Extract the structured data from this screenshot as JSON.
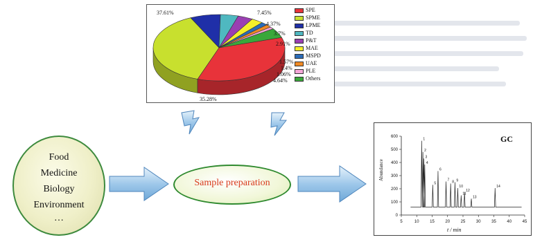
{
  "pie_chart": {
    "legend": [
      {
        "label": "SPE",
        "color": "#e8333a"
      },
      {
        "label": "SPME",
        "color": "#c8e02e"
      },
      {
        "label": "LPME",
        "color": "#1f2fa8"
      },
      {
        "label": "TD",
        "color": "#4fb8c0"
      },
      {
        "label": "P&T",
        "color": "#9a3fb2"
      },
      {
        "label": "MAE",
        "color": "#f4ef2a"
      },
      {
        "label": "MSPD",
        "color": "#2b6cb8"
      },
      {
        "label": "UAE",
        "color": "#f08a25"
      },
      {
        "label": "PLE",
        "color": "#f4a6d8"
      },
      {
        "label": "Others",
        "color": "#3aa83a"
      }
    ],
    "slices": [
      {
        "label": "SPE",
        "value": 35.28
      },
      {
        "label": "SPME",
        "value": 37.61
      },
      {
        "label": "LPME",
        "value": 7.45
      },
      {
        "label": "TD",
        "value": 4.37
      },
      {
        "label": "P&T",
        "value": 3.7
      },
      {
        "label": "MAE",
        "value": 2.91
      },
      {
        "label": "MSPD",
        "value": 1.57
      },
      {
        "label": "UAE",
        "value": 1.4
      },
      {
        "label": "PLE",
        "value": 1.06
      },
      {
        "label": "Others",
        "value": 4.64
      }
    ],
    "pct_labels": {
      "spe": "35.28%",
      "spme": "37.61%",
      "lpme": "7.45%",
      "td": "4.37%",
      "pt": "3.7%",
      "mae": "2.91%",
      "mspd": "1.57%",
      "uae": "1.4%",
      "ple": "1.06%",
      "others": "4.64%"
    }
  },
  "sources": [
    "Food",
    "Medicine",
    "Biology",
    "Environment",
    "…"
  ],
  "process": {
    "label": "Sample preparation"
  },
  "gc_chart": {
    "title": "GC",
    "ylabel": "Abundance",
    "xlabel": "t / min",
    "x_ticks": [
      "5",
      "10",
      "15",
      "20",
      "25",
      "30",
      "35",
      "40",
      "45"
    ],
    "y_ticks": [
      "0",
      "100",
      "200",
      "300",
      "400",
      "500",
      "600"
    ],
    "xlim": [
      5,
      45
    ],
    "ylim": [
      0,
      600
    ],
    "peaks": [
      {
        "x": 11.6,
        "y": 565,
        "label": "1"
      },
      {
        "x": 12.0,
        "y": 480,
        "label": "2"
      },
      {
        "x": 12.3,
        "y": 430,
        "label": "3"
      },
      {
        "x": 12.6,
        "y": 385,
        "label": "4"
      },
      {
        "x": 15.2,
        "y": 230,
        "label": "5"
      },
      {
        "x": 16.9,
        "y": 335,
        "label": "6"
      },
      {
        "x": 19.5,
        "y": 255,
        "label": "7"
      },
      {
        "x": 21.0,
        "y": 240,
        "label": "8"
      },
      {
        "x": 22.4,
        "y": 250,
        "label": "9"
      },
      {
        "x": 23.3,
        "y": 205,
        "label": "10"
      },
      {
        "x": 24.4,
        "y": 150,
        "label": "11"
      },
      {
        "x": 25.5,
        "y": 175,
        "label": "12"
      },
      {
        "x": 27.7,
        "y": 125,
        "label": "13"
      },
      {
        "x": 35.4,
        "y": 205,
        "label": "14"
      }
    ],
    "baseline": 60
  }
}
